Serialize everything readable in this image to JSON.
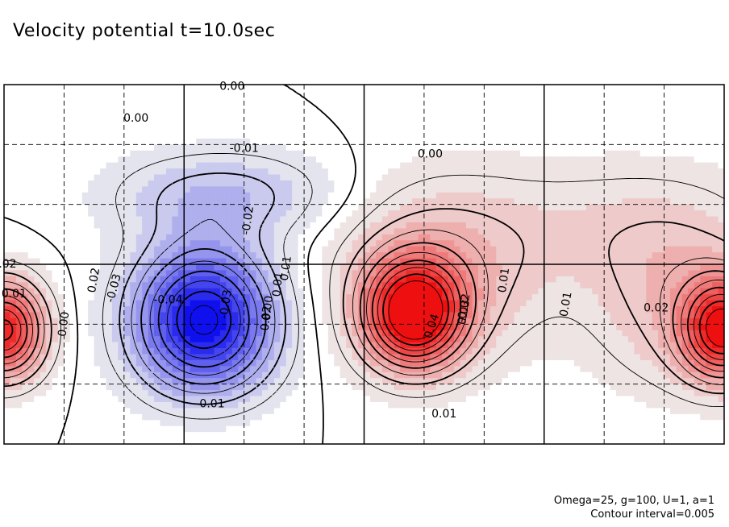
{
  "chart_data": {
    "type": "heatmap",
    "title": "Velocity potential t=10.0sec",
    "xlabel": "",
    "ylabel": "",
    "xlim": [
      0,
      360
    ],
    "ylim": [
      -90,
      90
    ],
    "x_gridlines": [
      30,
      60,
      90,
      120,
      150,
      180,
      210,
      240,
      270,
      300,
      330
    ],
    "y_gridlines": [
      -60,
      -30,
      0,
      30,
      60
    ],
    "contour_interval": 0.005,
    "color_scale": {
      "negative": "#1010ee",
      "zero": "#ffffff",
      "positive": "#ee1010"
    },
    "extrema": [
      {
        "name": "min",
        "lon": 100,
        "lat": -30,
        "value": -0.045
      },
      {
        "name": "max",
        "lon": 205,
        "lat": -25,
        "value": 0.045
      },
      {
        "name": "max-west",
        "lon": 0,
        "lat": -35,
        "value": 0.04
      },
      {
        "name": "max-east",
        "lon": 360,
        "lat": -35,
        "value": 0.04
      },
      {
        "name": "weak-max",
        "lon": 290,
        "lat": -30,
        "value": 0.005
      }
    ],
    "contour_labels": [
      "0.00",
      "0.00",
      "-0.01",
      "0.00",
      "-0.02",
      "0.01",
      "0.02",
      "-0.03",
      "-0.04",
      "-0.03",
      "-0.02",
      "0.01",
      "0.00",
      "0.02",
      "0.04",
      "0.03",
      "-0.02",
      "0.01",
      "0.02",
      "-0.01",
      "0.01",
      "0.01",
      "0.00",
      "0.01"
    ],
    "notes": [
      "Omega=25, g=100, U=1, a=1",
      "Contour interval=0.005"
    ]
  }
}
